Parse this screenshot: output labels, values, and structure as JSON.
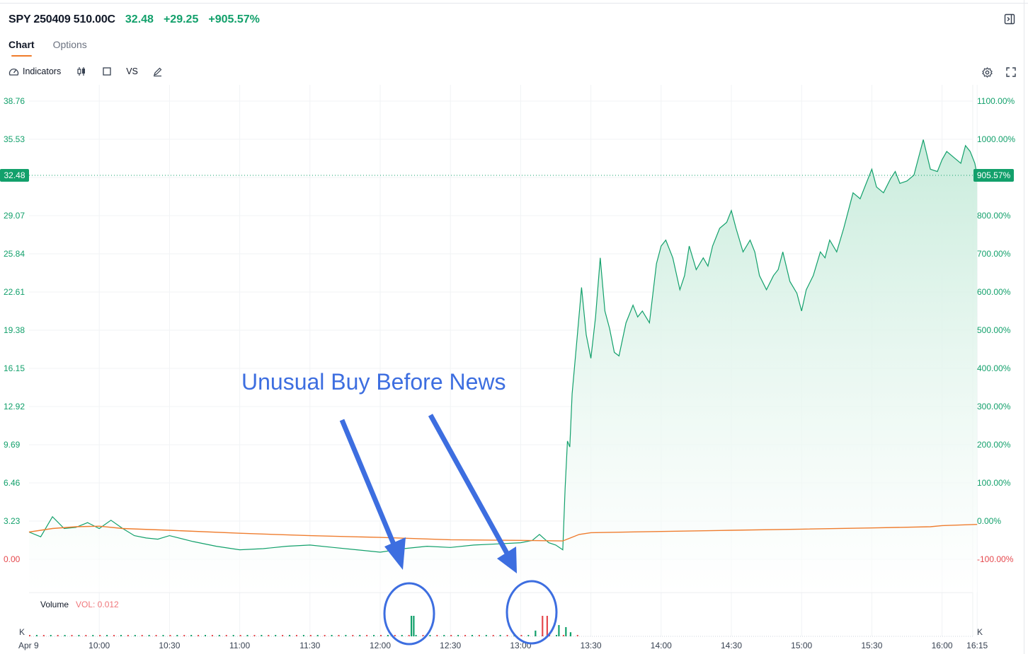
{
  "header": {
    "title": "SPY 250409 510.00C",
    "last_price": "32.48",
    "change": "+29.25",
    "change_pct": "+905.57%"
  },
  "tabs": [
    {
      "label": "Chart",
      "active": true
    },
    {
      "label": "Options",
      "active": false
    }
  ],
  "toolbar": {
    "indicators_label": "Indicators",
    "compare_label": "VS",
    "left_icons": [
      "gauge-icon",
      "candlestick-icon",
      "square-icon",
      "pen-icon"
    ],
    "right_icons": [
      "settings-icon",
      "fullscreen-icon"
    ]
  },
  "colors": {
    "up": "#12a06b",
    "down": "#e5484d",
    "avg_line": "#ef7d2f",
    "area_fill": "#d8f2e6",
    "annotation": "#3d6ee0"
  },
  "annotation": {
    "text": "Unusual Buy Before News"
  },
  "chart_data": {
    "type": "line",
    "date_label": "Apr 9",
    "x_tick_labels": [
      "10:00",
      "10:30",
      "11:00",
      "11:30",
      "12:00",
      "12:30",
      "13:00",
      "13:30",
      "14:00",
      "14:30",
      "15:00",
      "15:30",
      "16:00",
      "16:15"
    ],
    "y_left_ticks": [
      "38.76",
      "35.53",
      "32.48",
      "29.07",
      "25.84",
      "22.61",
      "19.38",
      "16.15",
      "12.92",
      "9.69",
      "6.46",
      "3.23",
      "0.00"
    ],
    "y_right_ticks": [
      "1100.00%",
      "1000.00%",
      "900.00%",
      "800.00%",
      "700.00%",
      "600.00%",
      "500.00%",
      "400.00%",
      "300.00%",
      "200.00%",
      "100.00%",
      "0.00%",
      "-100.00%"
    ],
    "current_price_label": "32.48",
    "current_pct_label": "905.57%",
    "ylim": [
      -2.5,
      40
    ],
    "price_series": {
      "name": "Price",
      "points": [
        [
          "09:30",
          2.3
        ],
        [
          "09:35",
          1.9
        ],
        [
          "09:40",
          3.6
        ],
        [
          "09:45",
          2.6
        ],
        [
          "09:50",
          2.7
        ],
        [
          "09:55",
          3.1
        ],
        [
          "10:00",
          2.6
        ],
        [
          "10:05",
          3.3
        ],
        [
          "10:10",
          2.6
        ],
        [
          "10:15",
          2.0
        ],
        [
          "10:20",
          1.8
        ],
        [
          "10:25",
          1.7
        ],
        [
          "10:30",
          2.0
        ],
        [
          "10:40",
          1.5
        ],
        [
          "10:50",
          1.1
        ],
        [
          "11:00",
          0.8
        ],
        [
          "11:10",
          0.9
        ],
        [
          "11:20",
          1.1
        ],
        [
          "11:30",
          1.2
        ],
        [
          "11:40",
          1.0
        ],
        [
          "11:50",
          0.8
        ],
        [
          "12:00",
          0.6
        ],
        [
          "12:10",
          0.9
        ],
        [
          "12:20",
          1.1
        ],
        [
          "12:30",
          1.0
        ],
        [
          "12:40",
          1.2
        ],
        [
          "12:50",
          1.3
        ],
        [
          "13:00",
          1.4
        ],
        [
          "13:05",
          1.6
        ],
        [
          "13:08",
          2.1
        ],
        [
          "13:12",
          1.4
        ],
        [
          "13:15",
          1.2
        ],
        [
          "13:18",
          0.8
        ],
        [
          "13:19",
          6.0
        ],
        [
          "13:20",
          10.0
        ],
        [
          "13:21",
          9.5
        ],
        [
          "13:22",
          14.0
        ],
        [
          "13:24",
          18.5
        ],
        [
          "13:26",
          23.0
        ],
        [
          "13:28",
          19.0
        ],
        [
          "13:30",
          17.0
        ],
        [
          "13:32",
          20.5
        ],
        [
          "13:34",
          25.5
        ],
        [
          "13:36",
          21.0
        ],
        [
          "13:38",
          19.5
        ],
        [
          "13:40",
          17.5
        ],
        [
          "13:42",
          17.2
        ],
        [
          "13:45",
          20.0
        ],
        [
          "13:48",
          21.5
        ],
        [
          "13:50",
          20.5
        ],
        [
          "13:52",
          21.0
        ],
        [
          "13:55",
          20.0
        ],
        [
          "13:58",
          25.0
        ],
        [
          "14:00",
          26.5
        ],
        [
          "14:02",
          27.0
        ],
        [
          "14:05",
          25.5
        ],
        [
          "14:08",
          22.8
        ],
        [
          "14:10",
          24.0
        ],
        [
          "14:12",
          26.5
        ],
        [
          "14:15",
          24.5
        ],
        [
          "14:18",
          25.5
        ],
        [
          "14:20",
          24.8
        ],
        [
          "14:22",
          26.5
        ],
        [
          "14:25",
          28.0
        ],
        [
          "14:28",
          28.5
        ],
        [
          "14:30",
          29.5
        ],
        [
          "14:32",
          28.0
        ],
        [
          "14:35",
          26.0
        ],
        [
          "14:38",
          27.0
        ],
        [
          "14:40",
          26.0
        ],
        [
          "14:42",
          24.0
        ],
        [
          "14:45",
          22.8
        ],
        [
          "14:48",
          24.0
        ],
        [
          "14:50",
          24.5
        ],
        [
          "14:52",
          26.0
        ],
        [
          "14:55",
          23.5
        ],
        [
          "14:58",
          22.5
        ],
        [
          "15:00",
          21.0
        ],
        [
          "15:02",
          22.8
        ],
        [
          "15:05",
          24.0
        ],
        [
          "15:08",
          26.0
        ],
        [
          "15:10",
          25.5
        ],
        [
          "15:12",
          27.0
        ],
        [
          "15:15",
          26.0
        ],
        [
          "15:18",
          28.0
        ],
        [
          "15:20",
          29.5
        ],
        [
          "15:22",
          31.0
        ],
        [
          "15:25",
          30.5
        ],
        [
          "15:28",
          32.0
        ],
        [
          "15:30",
          33.0
        ],
        [
          "15:32",
          31.5
        ],
        [
          "15:35",
          31.0
        ],
        [
          "15:38",
          32.2
        ],
        [
          "15:40",
          32.8
        ],
        [
          "15:42",
          31.8
        ],
        [
          "15:45",
          32.0
        ],
        [
          "15:48",
          32.5
        ],
        [
          "15:50",
          34.0
        ],
        [
          "15:52",
          35.5
        ],
        [
          "15:55",
          33.0
        ],
        [
          "15:58",
          32.8
        ],
        [
          "16:00",
          33.8
        ],
        [
          "16:02",
          34.5
        ],
        [
          "16:05",
          34.0
        ],
        [
          "16:08",
          33.5
        ],
        [
          "16:10",
          35.0
        ],
        [
          "16:12",
          34.5
        ],
        [
          "16:14",
          33.5
        ],
        [
          "16:15",
          32.48
        ]
      ]
    },
    "avg_series": {
      "name": "Avg",
      "points": [
        [
          "09:30",
          2.3
        ],
        [
          "09:40",
          2.6
        ],
        [
          "09:50",
          2.75
        ],
        [
          "10:00",
          2.8
        ],
        [
          "10:10",
          2.6
        ],
        [
          "10:30",
          2.45
        ],
        [
          "11:00",
          2.2
        ],
        [
          "11:30",
          2.0
        ],
        [
          "12:00",
          1.85
        ],
        [
          "12:30",
          1.65
        ],
        [
          "13:00",
          1.6
        ],
        [
          "13:18",
          1.55
        ],
        [
          "13:25",
          2.1
        ],
        [
          "13:30",
          2.25
        ],
        [
          "14:00",
          2.35
        ],
        [
          "14:30",
          2.45
        ],
        [
          "15:00",
          2.55
        ],
        [
          "15:30",
          2.65
        ],
        [
          "15:55",
          2.75
        ],
        [
          "16:00",
          2.85
        ],
        [
          "16:15",
          2.95
        ]
      ]
    },
    "volume": {
      "label": "Volume",
      "value_label": "VOL: 0.012",
      "left_unit": "K",
      "right_unit": "K",
      "bars": [
        [
          "12:13",
          1.0,
          "up"
        ],
        [
          "12:14",
          1.0,
          "up"
        ],
        [
          "13:06",
          0.28,
          "up"
        ],
        [
          "13:09",
          1.0,
          "down"
        ],
        [
          "13:11",
          1.0,
          "down"
        ],
        [
          "13:16",
          0.55,
          "up"
        ],
        [
          "13:19",
          0.45,
          "up"
        ],
        [
          "13:21",
          0.2,
          "up"
        ]
      ]
    }
  }
}
